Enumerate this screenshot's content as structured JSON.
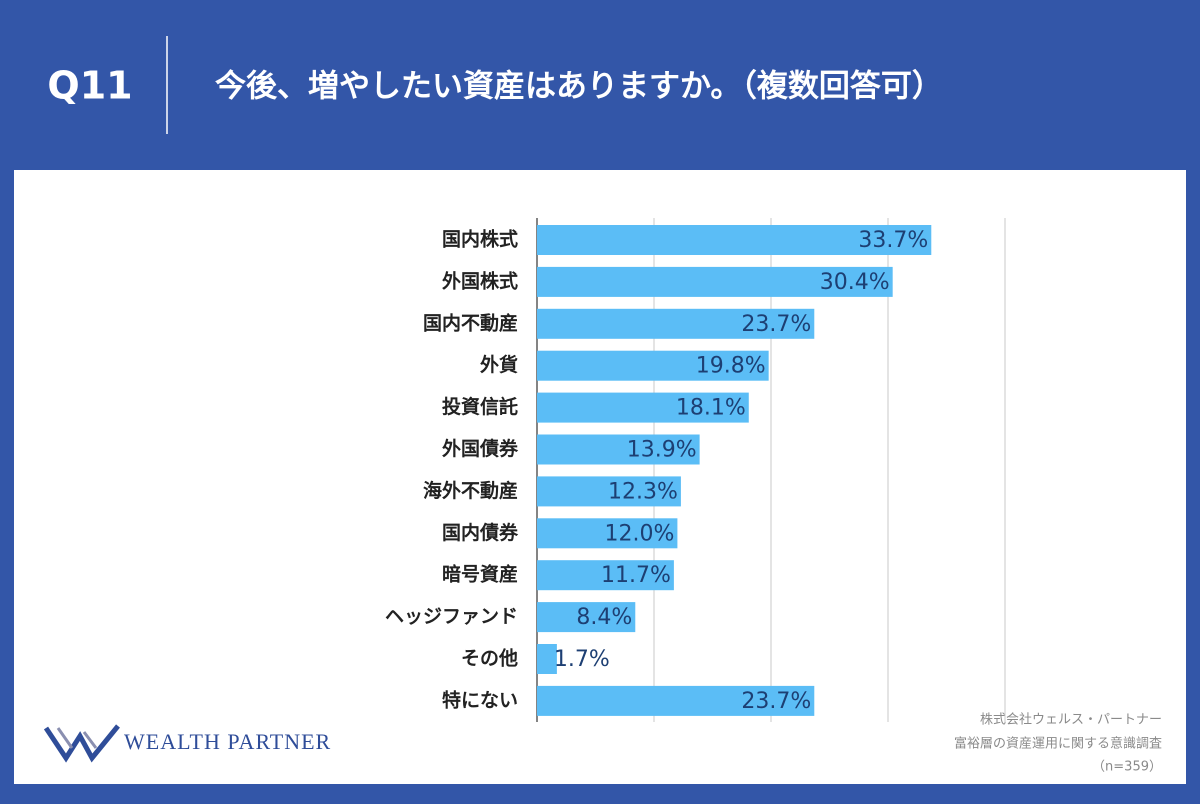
{
  "question_number": "Q11",
  "chart_data": {
    "type": "bar",
    "orientation": "horizontal",
    "title": "今後、増やしたい資産はありますか。（複数回答可）",
    "categories": [
      "国内株式",
      "外国株式",
      "国内不動産",
      "外貨",
      "投資信託",
      "外国債券",
      "海外不動産",
      "国内債券",
      "暗号資産",
      "ヘッジファンド",
      "その他",
      "特にない"
    ],
    "values": [
      33.7,
      30.4,
      23.7,
      19.8,
      18.1,
      13.9,
      12.3,
      12.0,
      11.7,
      8.4,
      1.7,
      23.7
    ],
    "value_labels": [
      "33.7%",
      "30.4%",
      "23.7%",
      "19.8%",
      "18.1%",
      "13.9%",
      "12.3%",
      "12.0%",
      "11.7%",
      "8.4%",
      "1.7%",
      "23.7%"
    ],
    "color": "#5bbdf6",
    "xlim": [
      0,
      40
    ],
    "xticks": [
      0,
      10,
      20,
      30,
      40
    ],
    "grid": true
  },
  "logo": "Wealth Partner",
  "footer": {
    "company": "株式会社ウェルス・パートナー",
    "survey": "富裕層の資産運用に関する意識調査",
    "sample": "（n=359）"
  }
}
